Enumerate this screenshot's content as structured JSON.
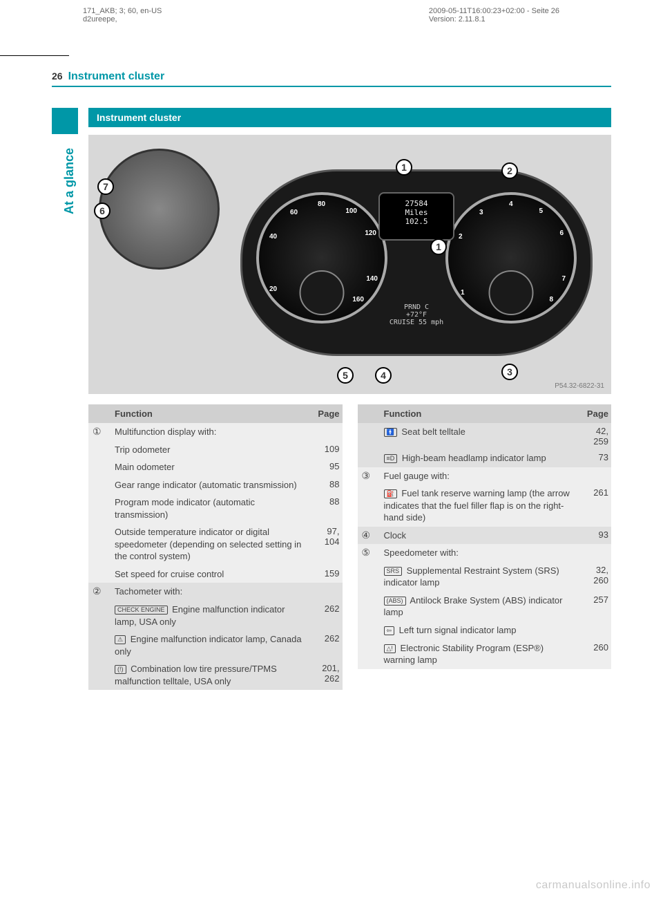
{
  "meta": {
    "left": "171_AKB; 3; 60, en-US\nd2ureepe,",
    "right": "2009-05-11T16:00:23+02:00 - Seite 26\nVersion: 2.11.8.1"
  },
  "page_number": "26",
  "page_title": "Instrument cluster",
  "section_title": "Instrument cluster",
  "side_label": "At a glance",
  "diagram": {
    "center_top_line1": "27584",
    "center_top_line2": "Miles",
    "center_top_line3": "102.5",
    "center_bottom_line1": "PRND C",
    "center_bottom_line2": "+72°F",
    "center_bottom_line3": "CRUISE 55 mph",
    "speed_ticks": {
      "t20": "20",
      "t40": "40",
      "t60": "60",
      "t80": "80",
      "t100": "100",
      "t120": "120",
      "t140": "140",
      "t160": "160"
    },
    "rpm_ticks": {
      "r1": "1",
      "r2": "2",
      "r3": "3",
      "r4": "4",
      "r5": "5",
      "r6": "6",
      "r7": "7",
      "r8": "8"
    },
    "callouts": {
      "c1": "1",
      "c2": "2",
      "c3": "3",
      "c4": "4",
      "c5": "5",
      "c6": "6",
      "c7": "7"
    },
    "code": "P54.32-6822-31"
  },
  "headers": {
    "function": "Function",
    "page": "Page"
  },
  "left_table": [
    {
      "num": "①",
      "stripe": 0,
      "rows": [
        {
          "func": "Multifunction display with:",
          "page": ""
        },
        {
          "func": "Trip odometer",
          "page": "109"
        },
        {
          "func": "Main odometer",
          "page": "95"
        },
        {
          "func": "Gear range indicator (automatic transmission)",
          "page": "88"
        },
        {
          "func": "Program mode indicator (automatic transmission)",
          "page": "88"
        },
        {
          "func": "Outside temperature indicator or digital speedometer (depending on selected setting in the control system)",
          "page": "97, 104"
        },
        {
          "func": "Set speed for cruise control",
          "page": "159"
        }
      ]
    },
    {
      "num": "②",
      "stripe": 1,
      "rows": [
        {
          "func": "Tachometer with:",
          "page": ""
        },
        {
          "icon": "CHECK ENGINE",
          "func": "Engine malfunction indicator lamp, USA only",
          "page": "262"
        },
        {
          "icon": "⚠",
          "func": "Engine malfunction indicator lamp, Canada only",
          "page": "262"
        },
        {
          "icon": "(!)",
          "func": "Combination low tire pressure/TPMS malfunction telltale, USA only",
          "page": "201, 262"
        }
      ]
    }
  ],
  "right_table": [
    {
      "num": "",
      "stripe": 1,
      "rows": [
        {
          "icon": "🚹",
          "func": "Seat belt telltale",
          "page": "42, 259"
        },
        {
          "icon": "≡D",
          "func": "High-beam headlamp indicator lamp",
          "page": "73"
        }
      ]
    },
    {
      "num": "③",
      "stripe": 0,
      "rows": [
        {
          "func": "Fuel gauge with:",
          "page": ""
        },
        {
          "icon": "⛽",
          "func": "Fuel tank reserve warning lamp (the arrow indicates that the fuel filler flap is on the right-hand side)",
          "page": "261"
        }
      ]
    },
    {
      "num": "④",
      "stripe": 1,
      "rows": [
        {
          "func": "Clock",
          "page": "93"
        }
      ]
    },
    {
      "num": "⑤",
      "stripe": 0,
      "rows": [
        {
          "func": "Speedometer with:",
          "page": ""
        },
        {
          "icon": "SRS",
          "func": "Supplemental Restraint System (SRS) indicator lamp",
          "page": "32, 260"
        },
        {
          "icon": "(ABS)",
          "func": "Antilock Brake System (ABS) indicator lamp",
          "page": "257"
        },
        {
          "icon": "⇦",
          "func": "Left turn signal indicator lamp",
          "page": ""
        },
        {
          "icon": "△!",
          "func": "Electronic Stability Program (ESP®) warning lamp",
          "page": "260"
        }
      ]
    }
  ],
  "watermark": "carmanualsonline.info"
}
